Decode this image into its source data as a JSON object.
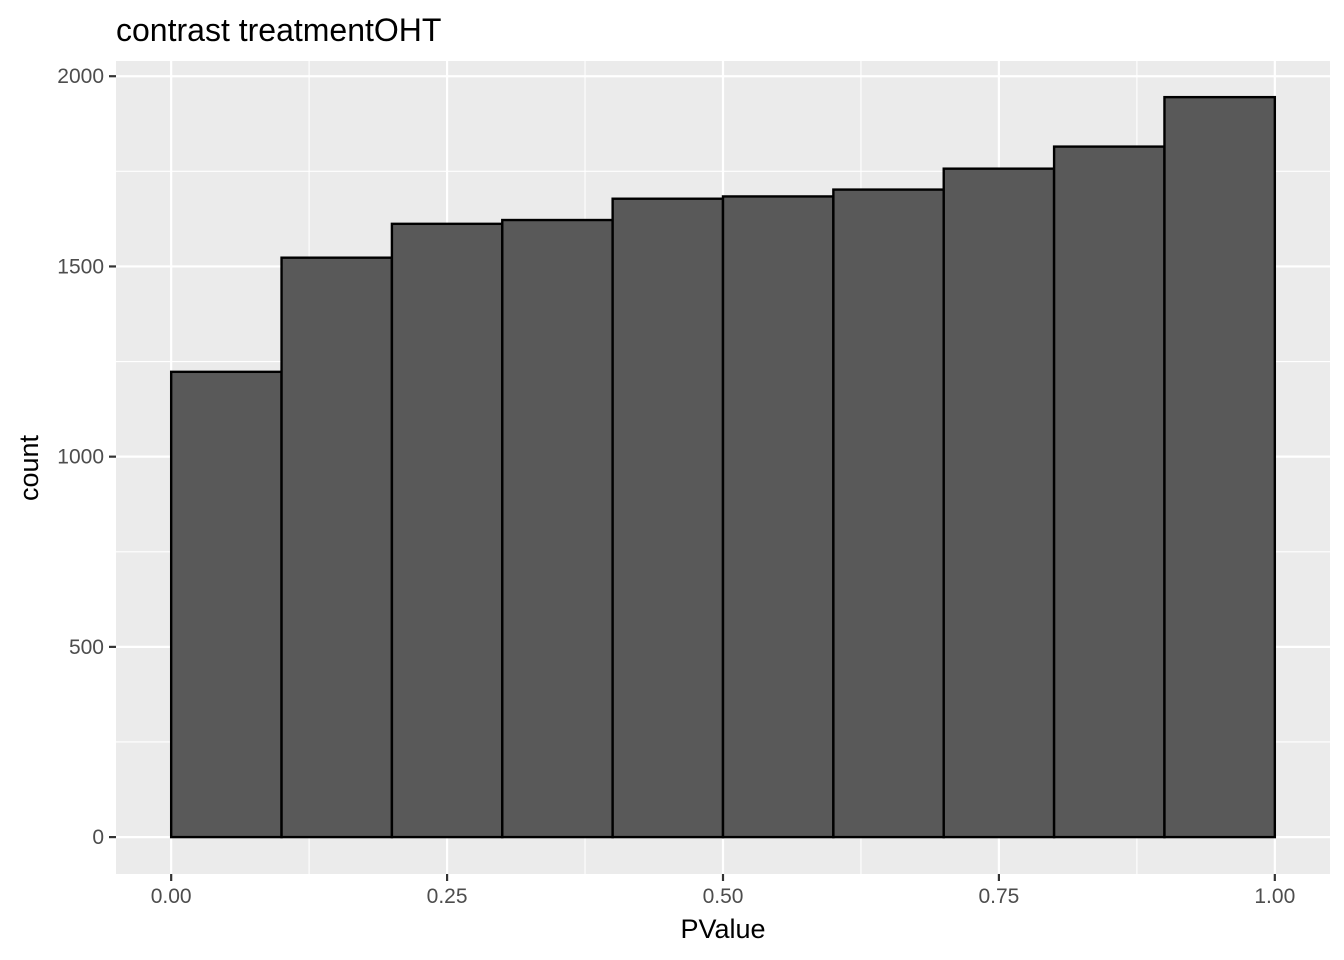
{
  "chart_data": {
    "type": "bar",
    "title": "contrast treatmentOHT",
    "xlabel": "PValue",
    "ylabel": "count",
    "bin_edges": [
      0.0,
      0.1,
      0.2,
      0.3,
      0.4,
      0.5,
      0.6,
      0.7,
      0.8,
      0.9,
      1.0
    ],
    "values": [
      1223,
      1523,
      1612,
      1622,
      1678,
      1684,
      1702,
      1757,
      1815,
      1945
    ],
    "xlim": [
      -0.05,
      1.05
    ],
    "ylim": [
      -97,
      2040
    ],
    "x_ticks": [
      0.0,
      0.25,
      0.5,
      0.75,
      1.0
    ],
    "x_tick_labels": [
      "0.00",
      "0.25",
      "0.50",
      "0.75",
      "1.00"
    ],
    "y_ticks": [
      0,
      500,
      1000,
      1500,
      2000
    ],
    "y_tick_labels": [
      "0",
      "500",
      "1000",
      "1500",
      "2000"
    ],
    "grid": true,
    "colors": {
      "panel_background": "#ebebeb",
      "bar_fill": "#595959",
      "bar_outline": "#000000",
      "grid": "#ffffff"
    }
  }
}
